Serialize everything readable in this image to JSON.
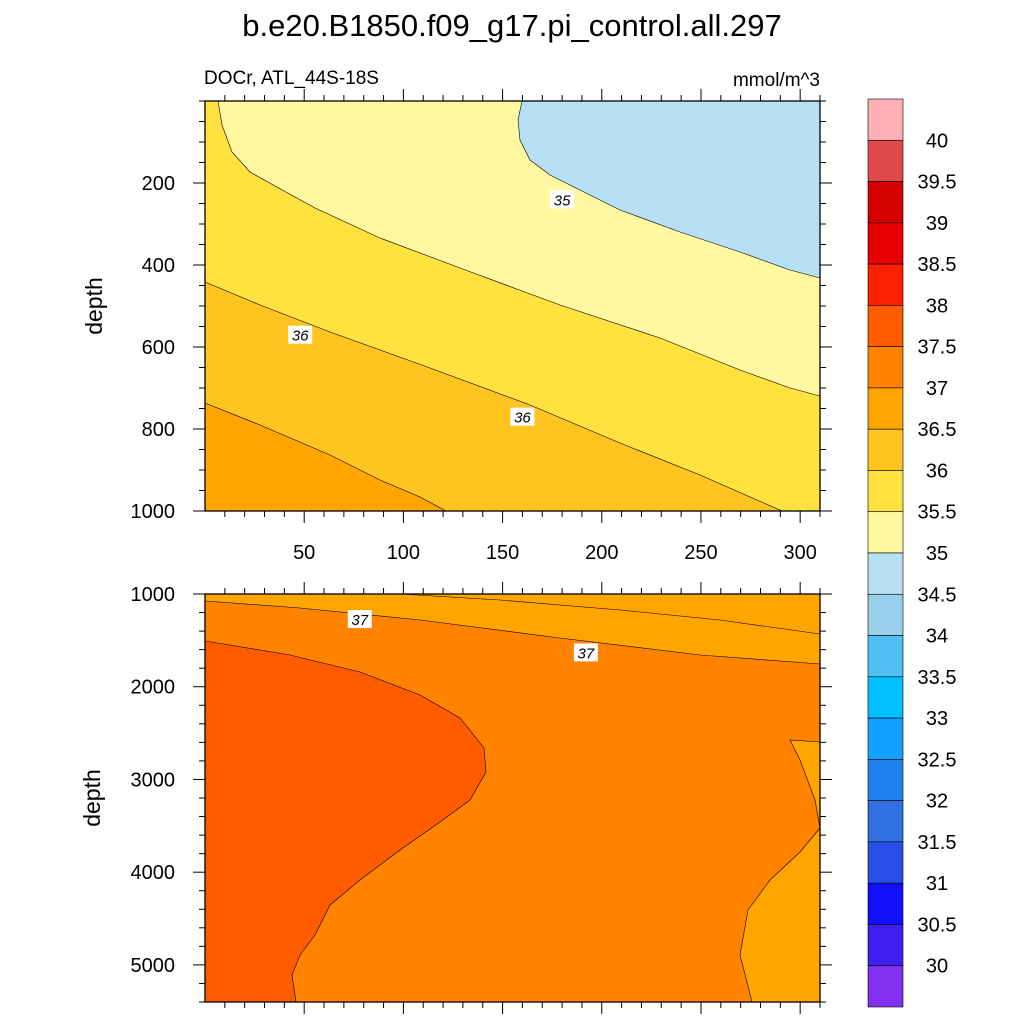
{
  "chart_data": {
    "type": "contour",
    "title": "b.e20.B1850.f09_g17.pi_control.all.297",
    "variable_label": "DOCr, ATL_44S-18S",
    "units": "mmol/m^3",
    "xlabel": "",
    "xlim": [
      0,
      310
    ],
    "x_ticks": [
      50,
      100,
      150,
      200,
      250,
      300
    ],
    "x_tick_labels": [
      "50",
      "100",
      "150",
      "200",
      "250",
      "300"
    ],
    "colorbar": {
      "levels": [
        40,
        39.5,
        39,
        38.5,
        38,
        37.5,
        37,
        36.5,
        36,
        35.5,
        35,
        34.5,
        34,
        33.5,
        33,
        32.5,
        32,
        31.5,
        31,
        30.5,
        30
      ],
      "labels": [
        "40",
        "39.5",
        "39",
        "38.5",
        "38",
        "37.5",
        "37",
        "36.5",
        "36",
        "35.5",
        "35",
        "34.5",
        "34",
        "33.5",
        "33",
        "32.5",
        "32",
        "31.5",
        "31",
        "30.5",
        "30"
      ],
      "colors": [
        "#ffb0b4",
        "#de4a4c",
        "#d40000",
        "#e80000",
        "#fc2000",
        "#ff5c00",
        "#ff8200",
        "#ffa500",
        "#ffc420",
        "#ffe240",
        "#fff8a0",
        "#b8e0f4",
        "#98d0ec",
        "#50c0f4",
        "#00c0ff",
        "#14a0ff",
        "#2080f0",
        "#3070e0",
        "#2850e8",
        "#1010ff",
        "#4020f0",
        "#8030ee"
      ]
    },
    "panels": [
      {
        "name": "upper",
        "ylabel": "depth",
        "ylim": [
          0,
          1000
        ],
        "y_ticks": [
          200,
          400,
          600,
          800,
          1000
        ],
        "y_tick_labels": [
          "200",
          "400",
          "600",
          "800",
          "1000"
        ],
        "contour_labels": [
          {
            "text": "35",
            "x": 180,
            "depth": 240
          },
          {
            "text": "36",
            "x": 48,
            "depth": 570
          },
          {
            "text": "36",
            "x": 160,
            "depth": 770
          }
        ],
        "regions": [
          {
            "range": "34.5-35",
            "color": "#b8e0f4",
            "extent": "upper right, x > 158, depth < 420 at x=310"
          },
          {
            "range": "35-35.5",
            "color": "#fff8a0",
            "extent": "band from top left to depth ~720 at x=310"
          },
          {
            "range": "35.5-36",
            "color": "#ffe240",
            "extent": "band, left edge 0-430"
          },
          {
            "range": "36-36.5",
            "color": "#ffc420",
            "extent": "band, left edge 430-730"
          },
          {
            "range": "36.5-37",
            "color": "#ffa500",
            "extent": "lower left, left edge 730-1000"
          }
        ]
      },
      {
        "name": "lower",
        "ylabel": "depth",
        "ylim": [
          1000,
          5400
        ],
        "y_ticks": [
          1000,
          2000,
          3000,
          4000,
          5000
        ],
        "y_tick_labels": [
          "1000",
          "2000",
          "3000",
          "4000",
          "5000"
        ],
        "contour_labels": [
          {
            "text": "37",
            "x": 78,
            "depth": 1270
          },
          {
            "text": "37",
            "x": 192,
            "depth": 1630
          }
        ],
        "regions": [
          {
            "range": "36.5-37",
            "color": "#ffa500",
            "extent": "top strip and bottom right"
          },
          {
            "range": "37-37.5",
            "color": "#ff8200",
            "extent": "main body"
          },
          {
            "range": "37.5-38",
            "color": "#ff5c00",
            "extent": "left lobe, max x ~140 near depth 2800"
          }
        ]
      }
    ]
  }
}
